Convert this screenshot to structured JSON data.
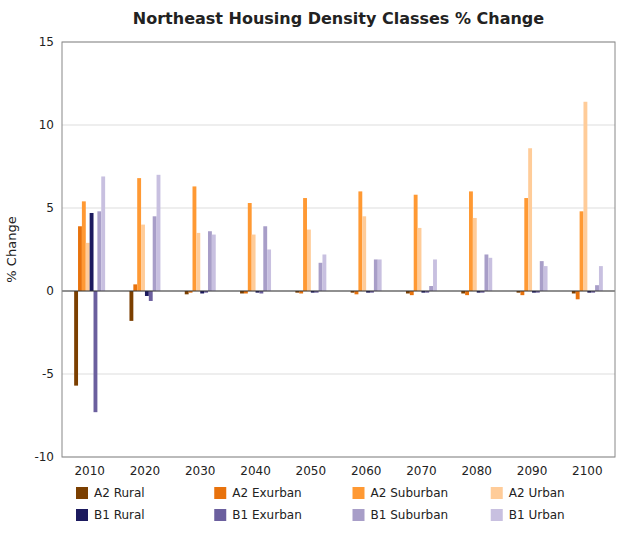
{
  "chart_data": {
    "type": "bar",
    "title": "Northeast Housing Density Classes % Change",
    "y_label": "% Change",
    "categories": [
      "2010",
      "2020",
      "2030",
      "2040",
      "2050",
      "2060",
      "2070",
      "2080",
      "2090",
      "2100"
    ],
    "series": [
      {
        "name": "A2 Rural",
        "color": "#7B3F00",
        "values": [
          -5.7,
          -1.8,
          -0.2,
          -0.15,
          -0.1,
          -0.1,
          -0.15,
          -0.15,
          -0.1,
          -0.15
        ]
      },
      {
        "name": "A2 Exurban",
        "color": "#E8720C",
        "values": [
          3.9,
          0.4,
          -0.1,
          -0.15,
          -0.15,
          -0.2,
          -0.25,
          -0.25,
          -0.25,
          -0.5
        ]
      },
      {
        "name": "A2 Suburban",
        "color": "#FF9933",
        "values": [
          5.4,
          6.8,
          6.3,
          5.3,
          5.6,
          6.0,
          5.8,
          6.0,
          5.6,
          4.8
        ]
      },
      {
        "name": "A2 Urban",
        "color": "#FFCC99",
        "values": [
          2.9,
          4.0,
          3.5,
          3.4,
          3.7,
          4.5,
          3.8,
          4.4,
          8.6,
          11.4
        ]
      },
      {
        "name": "B1 Rural",
        "color": "#1C1A5E",
        "values": [
          4.7,
          -0.3,
          -0.15,
          -0.1,
          -0.1,
          -0.1,
          -0.1,
          -0.1,
          -0.1,
          -0.1
        ]
      },
      {
        "name": "B1 Exurban",
        "color": "#6B5F9E",
        "values": [
          -7.3,
          -0.6,
          -0.1,
          -0.15,
          -0.1,
          -0.1,
          -0.1,
          -0.1,
          -0.1,
          -0.1
        ]
      },
      {
        "name": "B1 Suburban",
        "color": "#A89EC8",
        "values": [
          4.8,
          4.5,
          3.6,
          3.9,
          1.7,
          1.9,
          0.3,
          2.2,
          1.8,
          0.35
        ]
      },
      {
        "name": "B1 Urban",
        "color": "#C8C0E0",
        "values": [
          6.9,
          7.0,
          3.4,
          2.5,
          2.2,
          1.9,
          1.9,
          2.0,
          1.5,
          1.5
        ]
      }
    ],
    "ylim": [
      -10,
      15
    ],
    "yticks": [
      -10,
      -5,
      0,
      5,
      10,
      15
    ],
    "grid": true,
    "legend": "bottom"
  }
}
